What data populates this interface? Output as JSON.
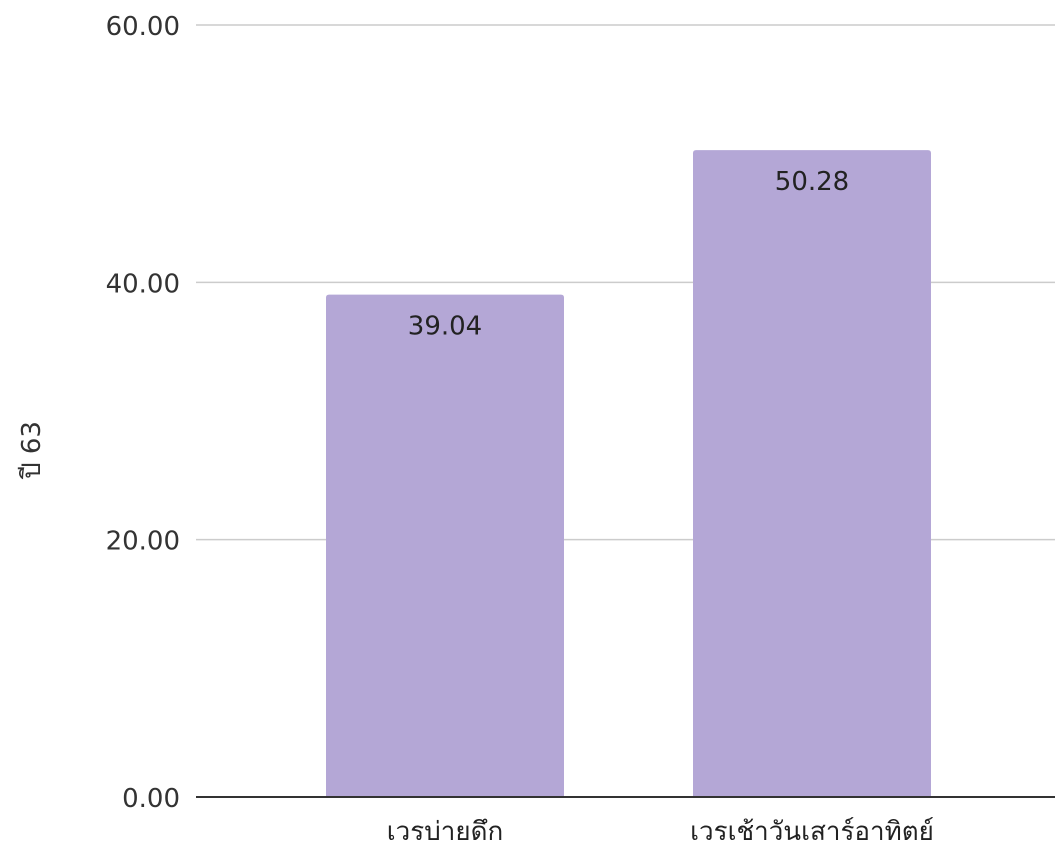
{
  "chart_data": {
    "type": "bar",
    "title": "",
    "xlabel": "",
    "ylabel": "ปี 63",
    "categories": [
      "เวรบ่ายดึก",
      "เวรเช้าวันเสาร์อาทิตย์"
    ],
    "series": [
      {
        "values": [
          39.04,
          50.28
        ],
        "color": "#b4a7d6"
      }
    ],
    "data_labels": [
      "39.04",
      "50.28"
    ],
    "ylim": [
      0,
      60
    ],
    "yticks": [
      0,
      20,
      40,
      60
    ],
    "ytick_labels": [
      "0.00",
      "20.00",
      "40.00",
      "60.00"
    ],
    "grid": true,
    "legend": "none"
  },
  "colors": {
    "bar": "#b4a7d6",
    "grid": "#cccccc",
    "axis": "#333333"
  }
}
